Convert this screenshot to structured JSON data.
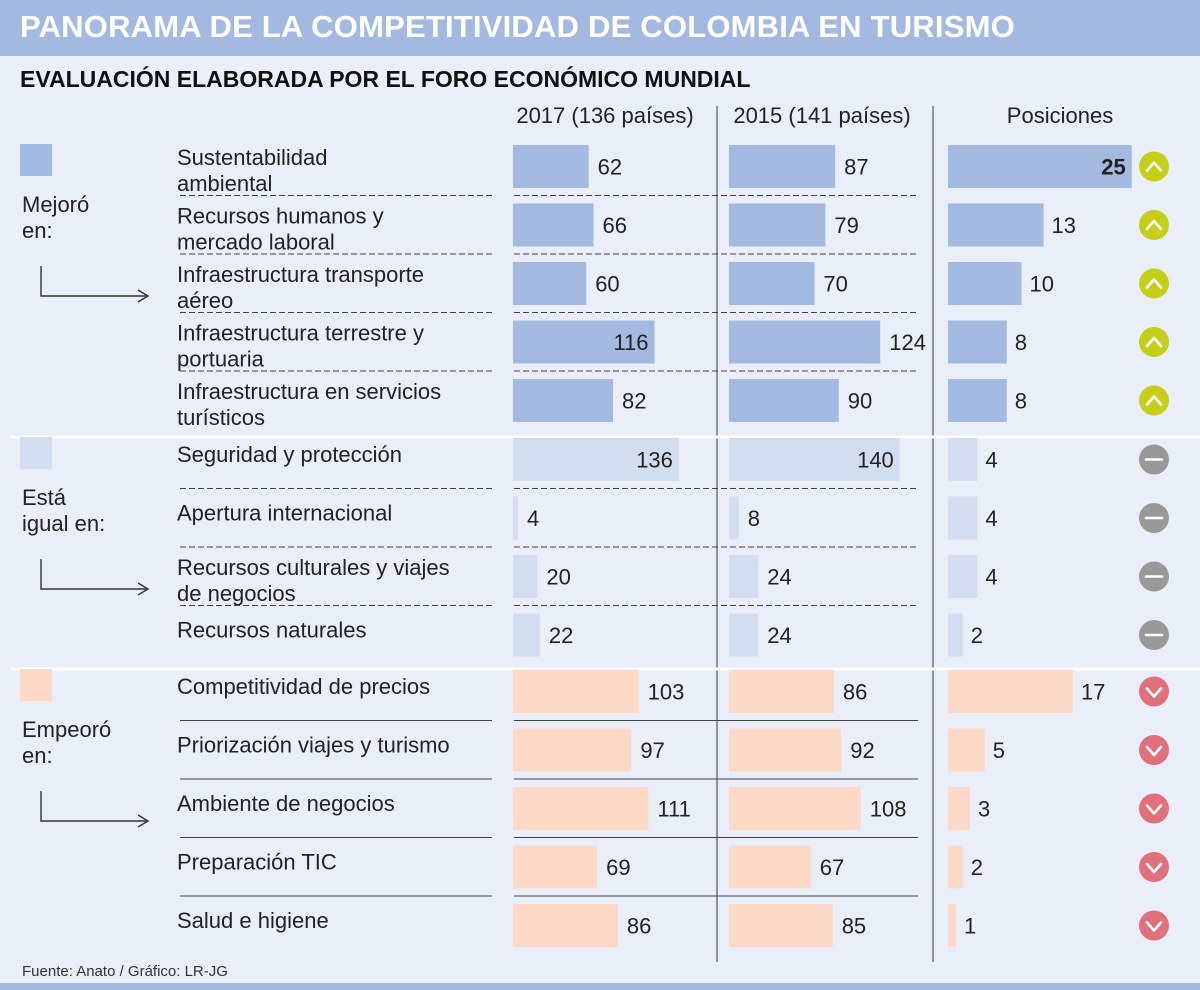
{
  "header": {
    "title": "PANORAMA DE LA COMPETITIVIDAD DE COLOMBIA EN TURISMO",
    "subtitle": "EVALUACIÓN ELABORADA POR EL FORO ECONÓMICO MUNDIAL"
  },
  "footer": {
    "source": "Fuente: Anato / Gráfico: LR-JG"
  },
  "colors": {
    "header_bar": "#a3b9e0",
    "background": "#eaeef8",
    "mejoro": "#a3b9e0",
    "igual": "#d3ddf0",
    "empeoro": "#fcd9c7",
    "icon_up": "#c5cf1a",
    "icon_equal": "#999999",
    "icon_down": "#e0707c"
  },
  "chart_data": {
    "type": "bar",
    "title": "PANORAMA DE LA COMPETITIVIDAD DE COLOMBIA EN TURISMO",
    "subtitle": "EVALUACIÓN ELABORADA POR EL FORO ECONÓMICO MUNDIAL",
    "columns": [
      {
        "key": "y2017",
        "label": "2017 (136 países)"
      },
      {
        "key": "y2015",
        "label": "2015 (141 países)"
      },
      {
        "key": "posiciones",
        "label": "Posiciones"
      }
    ],
    "groups": [
      {
        "name": "Mejoró en:",
        "label_lines": [
          "Mejoró",
          "en:"
        ],
        "trend": "up",
        "color_key": "mejoro",
        "rows": [
          {
            "lines": [
              "Sustentabilidad",
              "ambiental"
            ],
            "y2017": 62,
            "y2015": 87,
            "posiciones": 25
          },
          {
            "lines": [
              "Recursos humanos y",
              "mercado laboral"
            ],
            "y2017": 66,
            "y2015": 79,
            "posiciones": 13
          },
          {
            "lines": [
              "Infraestructura transporte",
              "aéreo"
            ],
            "y2017": 60,
            "y2015": 70,
            "posiciones": 10
          },
          {
            "lines": [
              "Infraestructura terrestre y",
              "portuaria"
            ],
            "y2017": 116,
            "y2015": 124,
            "posiciones": 8
          },
          {
            "lines": [
              "Infraestructura en servicios",
              "turísticos"
            ],
            "y2017": 82,
            "y2015": 90,
            "posiciones": 8
          }
        ]
      },
      {
        "name": "Está igual en:",
        "label_lines": [
          "Está",
          "igual en:"
        ],
        "trend": "equal",
        "color_key": "igual",
        "rows": [
          {
            "lines": [
              "Seguridad y protección"
            ],
            "y2017": 136,
            "y2015": 140,
            "posiciones": 4
          },
          {
            "lines": [
              "Apertura internacional"
            ],
            "y2017": 4,
            "y2015": 8,
            "posiciones": 4
          },
          {
            "lines": [
              "Recursos culturales y viajes",
              "de negocios"
            ],
            "y2017": 20,
            "y2015": 24,
            "posiciones": 4
          },
          {
            "lines": [
              "Recursos naturales"
            ],
            "y2017": 22,
            "y2015": 24,
            "posiciones": 2
          }
        ]
      },
      {
        "name": "Empeoró en:",
        "label_lines": [
          "Empeoró",
          "en:"
        ],
        "trend": "down",
        "color_key": "empeoro",
        "rows": [
          {
            "lines": [
              "Competitividad de precios"
            ],
            "y2017": 103,
            "y2015": 86,
            "posiciones": 17
          },
          {
            "lines": [
              "Priorización viajes y turismo"
            ],
            "y2017": 97,
            "y2015": 92,
            "posiciones": 5
          },
          {
            "lines": [
              "Ambiente de negocios"
            ],
            "y2017": 111,
            "y2015": 108,
            "posiciones": 3
          },
          {
            "lines": [
              "Preparación TIC"
            ],
            "y2017": 69,
            "y2015": 67,
            "posiciones": 2
          },
          {
            "lines": [
              "Salud e higiene"
            ],
            "y2017": 86,
            "y2015": 85,
            "posiciones": 1
          }
        ]
      }
    ]
  }
}
